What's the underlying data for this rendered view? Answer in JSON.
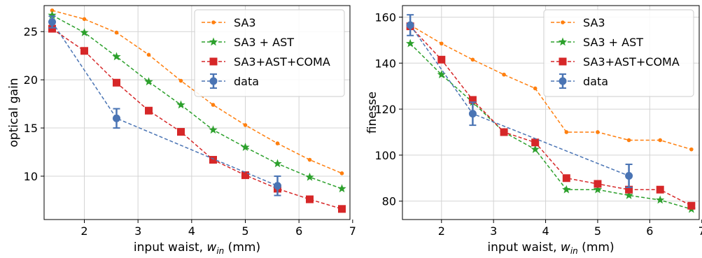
{
  "chart_data": [
    {
      "type": "line",
      "title": "",
      "xlabel": "input waist, w_in (mm)",
      "xlabel_main": "input waist, ",
      "xlabel_var": "w",
      "xlabel_sub": "in",
      "xlabel_unit": " (mm)",
      "ylabel": "optical gain",
      "xlim": [
        1.25,
        6.95
      ],
      "ylim": [
        5.5,
        27.7
      ],
      "xticks": [
        2,
        3,
        4,
        5,
        6,
        7
      ],
      "yticks": [
        10,
        15,
        20,
        25
      ],
      "grid": true,
      "legend_position": "top-right",
      "series": [
        {
          "name": "SA3",
          "color": "#ff7f0e",
          "marker": "circle-small",
          "x": [
            1.4,
            2.0,
            2.6,
            3.2,
            3.8,
            4.4,
            5.0,
            5.6,
            6.2,
            6.8
          ],
          "y": [
            27.2,
            26.3,
            24.9,
            22.6,
            19.9,
            17.4,
            15.3,
            13.4,
            11.7,
            10.3
          ]
        },
        {
          "name": "SA3 + AST",
          "color": "#2ca02c",
          "marker": "star",
          "x": [
            1.4,
            2.0,
            2.6,
            3.2,
            3.8,
            4.4,
            5.0,
            5.6,
            6.2,
            6.8
          ],
          "y": [
            26.7,
            24.9,
            22.4,
            19.8,
            17.4,
            14.8,
            13.0,
            11.3,
            9.9,
            8.7
          ]
        },
        {
          "name": "SA3+AST+COMA",
          "color": "#d62728",
          "marker": "square",
          "x": [
            1.4,
            2.0,
            2.6,
            3.2,
            3.8,
            4.4,
            5.0,
            5.6,
            6.2,
            6.8
          ],
          "y": [
            25.3,
            23.0,
            19.7,
            16.8,
            14.6,
            11.7,
            10.1,
            8.7,
            7.6,
            6.6
          ]
        },
        {
          "name": "data",
          "color": "#4a74b4",
          "marker": "circle",
          "x": [
            1.4,
            2.6,
            5.6
          ],
          "y": [
            26.0,
            16.0,
            9.0
          ],
          "err": [
            0.6,
            1.0,
            1.0
          ]
        }
      ]
    },
    {
      "type": "line",
      "title": "",
      "xlabel": "input waist, w_in (mm)",
      "xlabel_main": "input waist, ",
      "xlabel_var": "w",
      "xlabel_sub": "in",
      "xlabel_unit": " (mm)",
      "ylabel": "finesse",
      "xlim": [
        1.25,
        6.95
      ],
      "ylim": [
        72,
        165
      ],
      "xticks": [
        2,
        3,
        4,
        5,
        6,
        7
      ],
      "yticks": [
        80,
        100,
        120,
        140,
        160
      ],
      "grid": true,
      "legend_position": "top-right",
      "series": [
        {
          "name": "SA3",
          "color": "#ff7f0e",
          "marker": "circle-small",
          "x": [
            1.4,
            2.0,
            2.6,
            3.2,
            3.8,
            4.4,
            5.0,
            5.6,
            6.2,
            6.8
          ],
          "y": [
            156.5,
            148.5,
            141.5,
            135.0,
            129.0,
            110.0,
            110.0,
            106.5,
            106.5,
            102.5
          ]
        },
        {
          "name": "SA3 + AST",
          "color": "#2ca02c",
          "marker": "star",
          "x": [
            1.4,
            2.0,
            2.6,
            3.2,
            3.8,
            4.4,
            5.0,
            5.6,
            6.2,
            6.8
          ],
          "y": [
            148.5,
            135.0,
            123.0,
            110.0,
            102.5,
            85.0,
            85.0,
            82.5,
            80.5,
            76.5
          ]
        },
        {
          "name": "SA3+AST+COMA",
          "color": "#d62728",
          "marker": "square",
          "x": [
            1.4,
            2.0,
            2.6,
            3.2,
            3.8,
            4.4,
            5.0,
            5.6,
            6.2,
            6.8
          ],
          "y": [
            156.0,
            141.5,
            124.0,
            110.0,
            105.5,
            90.0,
            87.5,
            85.0,
            85.0,
            78.0
          ]
        },
        {
          "name": "data",
          "color": "#4a74b4",
          "marker": "circle",
          "x": [
            1.4,
            2.6,
            5.6
          ],
          "y": [
            156.5,
            118.0,
            91.0
          ],
          "err": [
            4.5,
            5.0,
            5.0
          ]
        }
      ]
    }
  ]
}
